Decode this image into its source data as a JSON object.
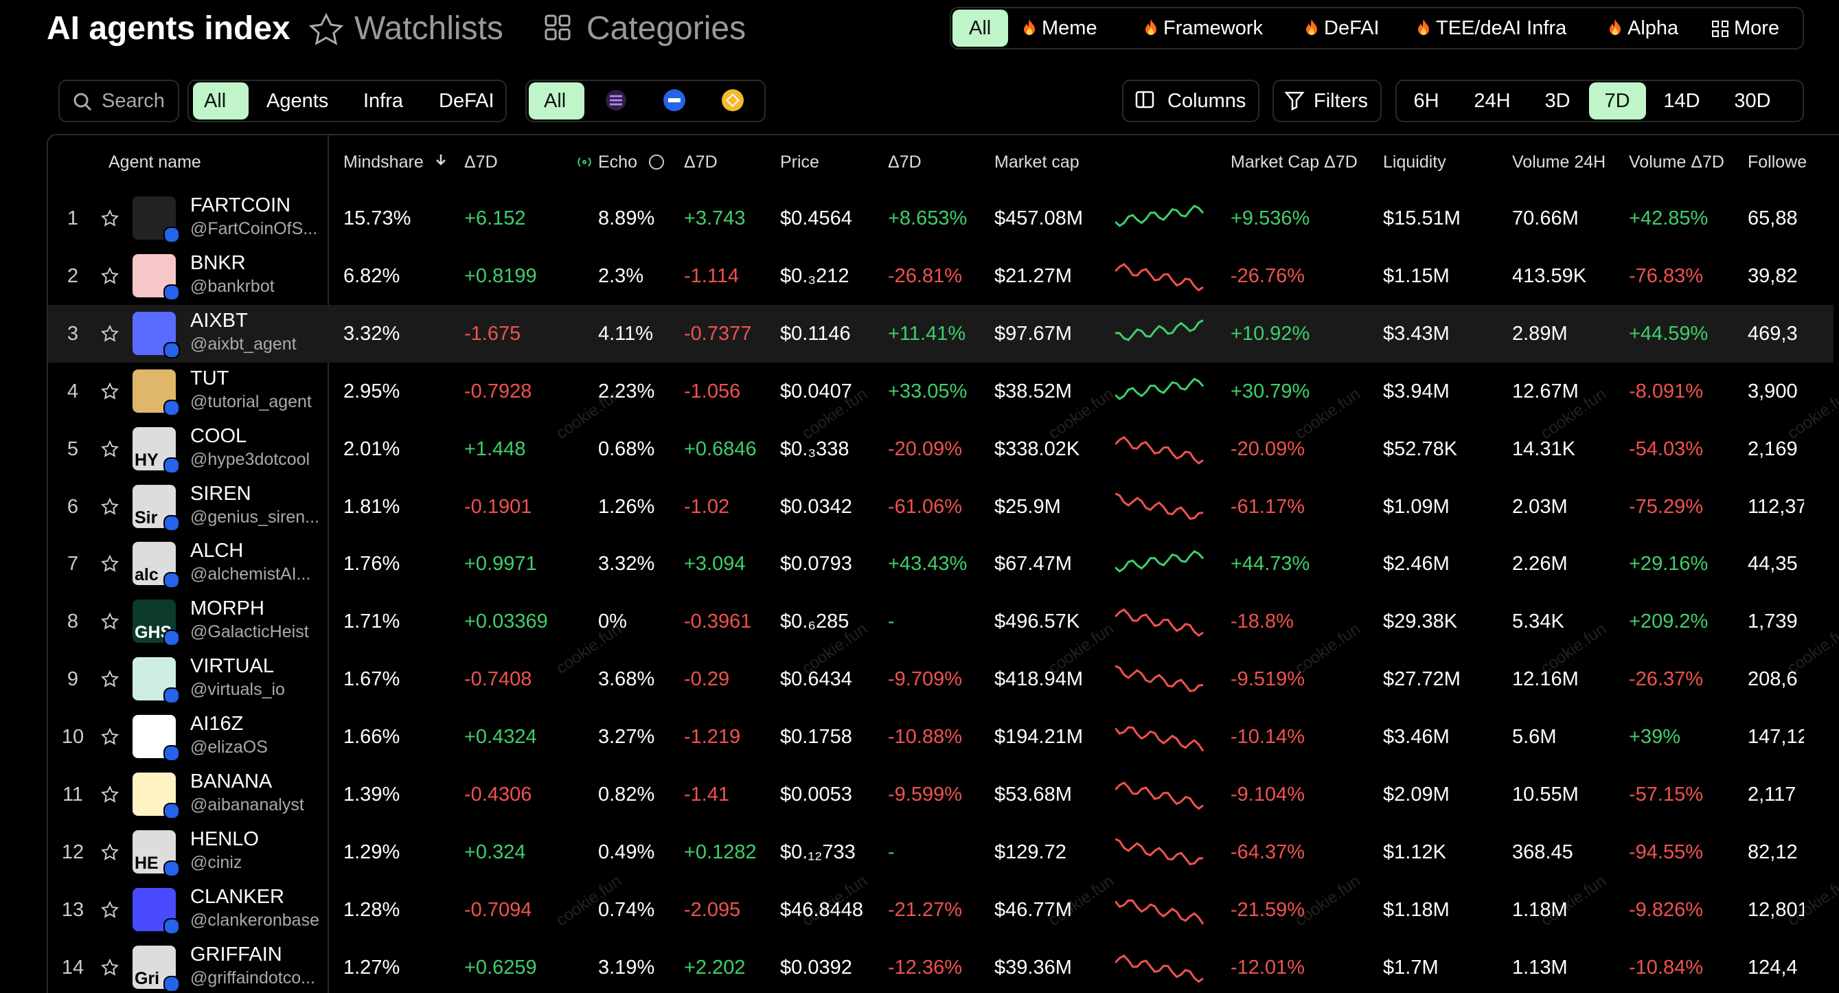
{
  "header": {
    "title": "AI agents index",
    "nav": [
      "Watchlists",
      "Categories"
    ],
    "category_tabs": [
      "All",
      "Meme",
      "Framework",
      "DeFAI",
      "TEE/deAI Infra",
      "Alpha",
      "More"
    ]
  },
  "toolbar": {
    "search": "Search",
    "type_tabs": [
      "All",
      "Agents",
      "Infra",
      "DeFAI"
    ],
    "chain_all": "All",
    "buttons": [
      "Columns",
      "Filters"
    ],
    "timeframes": [
      "6H",
      "24H",
      "3D",
      "7D",
      "14D",
      "30D"
    ]
  },
  "table": {
    "columns": [
      "Agent name",
      "Mindshare",
      "Δ7D",
      "Echo",
      "Δ7D",
      "Price",
      "Δ7D",
      "Market cap",
      "Market Cap Δ7D",
      "Liquidity",
      "Volume 24H",
      "Volume Δ7D",
      "Followe"
    ],
    "rows": [
      {
        "rank": 1,
        "name": "FARTCOIN",
        "handle": "@FartCoinOfS...",
        "cells": [
          "15.73%",
          "+6.152",
          "8.89%",
          "+3.743",
          "$0.4564",
          "+8.653%",
          "$457.08M",
          "+9.536%",
          "$15.51M",
          "70.66M",
          "+42.85%",
          "65,88"
        ]
      },
      {
        "rank": 2,
        "name": "BNKR",
        "handle": "@bankrbot",
        "cells": [
          "6.82%",
          "+0.8199",
          "2.3%",
          "-1.114",
          "$0.₃212",
          "-26.81%",
          "$21.27M",
          "-26.76%",
          "$1.15M",
          "413.59K",
          "-76.83%",
          "39,82"
        ]
      },
      {
        "rank": 3,
        "name": "AIXBT",
        "handle": "@aixbt_agent",
        "cells": [
          "3.32%",
          "-1.675",
          "4.11%",
          "-0.7377",
          "$0.1146",
          "+11.41%",
          "$97.67M",
          "+10.92%",
          "$3.43M",
          "2.89M",
          "+44.59%",
          "469,3"
        ]
      },
      {
        "rank": 4,
        "name": "TUT",
        "handle": "@tutorial_agent",
        "cells": [
          "2.95%",
          "-0.7928",
          "2.23%",
          "-1.056",
          "$0.0407",
          "+33.05%",
          "$38.52M",
          "+30.79%",
          "$3.94M",
          "12.67M",
          "-8.091%",
          "3,900"
        ]
      },
      {
        "rank": 5,
        "name": "COOL",
        "handle": "@hype3dotcool",
        "avatar_text": "HY",
        "cells": [
          "2.01%",
          "+1.448",
          "0.68%",
          "+0.6846",
          "$0.₃338",
          "-20.09%",
          "$338.02K",
          "-20.09%",
          "$52.78K",
          "14.31K",
          "-54.03%",
          "2,169"
        ]
      },
      {
        "rank": 6,
        "name": "SIREN",
        "handle": "@genius_siren...",
        "avatar_text": "Sir",
        "cells": [
          "1.81%",
          "-0.1901",
          "1.26%",
          "-1.02",
          "$0.0342",
          "-61.06%",
          "$25.9M",
          "-61.17%",
          "$1.09M",
          "2.03M",
          "-75.29%",
          "112,37"
        ]
      },
      {
        "rank": 7,
        "name": "ALCH",
        "handle": "@alchemistAI...",
        "avatar_text": "alc",
        "cells": [
          "1.76%",
          "+0.9971",
          "3.32%",
          "+3.094",
          "$0.0793",
          "+43.43%",
          "$67.47M",
          "+44.73%",
          "$2.46M",
          "2.26M",
          "+29.16%",
          "44,35"
        ]
      },
      {
        "rank": 8,
        "name": "MORPH",
        "handle": "@GalacticHeist",
        "avatar_text": "GHS",
        "cells": [
          "1.71%",
          "+0.03369",
          "0%",
          "-0.3961",
          "$0.₆285",
          "-",
          "$496.57K",
          "-18.8%",
          "$29.38K",
          "5.34K",
          "+209.2%",
          "1,739"
        ]
      },
      {
        "rank": 9,
        "name": "VIRTUAL",
        "handle": "@virtuals_io",
        "cells": [
          "1.67%",
          "-0.7408",
          "3.68%",
          "-0.29",
          "$0.6434",
          "-9.709%",
          "$418.94M",
          "-9.519%",
          "$27.72M",
          "12.16M",
          "-26.37%",
          "208,6"
        ]
      },
      {
        "rank": 10,
        "name": "AI16Z",
        "handle": "@elizaOS",
        "cells": [
          "1.66%",
          "+0.4324",
          "3.27%",
          "-1.219",
          "$0.1758",
          "-10.88%",
          "$194.21M",
          "-10.14%",
          "$3.46M",
          "5.6M",
          "+39%",
          "147,12"
        ]
      },
      {
        "rank": 11,
        "name": "BANANA",
        "handle": "@aibananalyst",
        "cells": [
          "1.39%",
          "-0.4306",
          "0.82%",
          "-1.41",
          "$0.0053",
          "-9.599%",
          "$53.68M",
          "-9.104%",
          "$2.09M",
          "10.55M",
          "-57.15%",
          "2,117"
        ]
      },
      {
        "rank": 12,
        "name": "HENLO",
        "handle": "@ciniz",
        "avatar_text": "HE",
        "cells": [
          "1.29%",
          "+0.324",
          "0.49%",
          "+0.1282",
          "$0.₁₂733",
          "-",
          "$129.72",
          "-64.37%",
          "$1.12K",
          "368.45",
          "-94.55%",
          "82,12"
        ]
      },
      {
        "rank": 13,
        "name": "CLANKER",
        "handle": "@clankeronbase",
        "cells": [
          "1.28%",
          "-0.7094",
          "0.74%",
          "-2.095",
          "$46.8448",
          "-21.27%",
          "$46.77M",
          "-21.59%",
          "$1.18M",
          "1.18M",
          "-9.826%",
          "12,801"
        ]
      },
      {
        "rank": 14,
        "name": "GRIFFAIN",
        "handle": "@griffaindotco...",
        "avatar_text": "Gri",
        "cells": [
          "1.27%",
          "+0.6259",
          "3.19%",
          "+2.202",
          "$0.0392",
          "-12.36%",
          "$39.36M",
          "-12.01%",
          "$1.7M",
          "1.13M",
          "-10.84%",
          "124,4"
        ]
      }
    ]
  },
  "watermark": "cookie.fun"
}
